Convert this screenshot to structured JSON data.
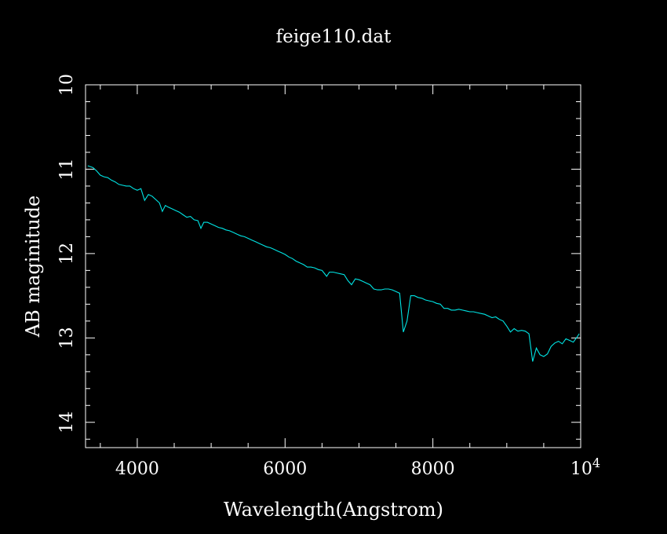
{
  "chart_data": {
    "type": "line",
    "title": "feige110.dat",
    "xlabel": "Wavelength(Angstrom)",
    "ylabel": "AB maginitude",
    "xlim": [
      3300,
      10000
    ],
    "ylim": [
      10,
      14.3
    ],
    "y_inverted": true,
    "grid": false,
    "x_ticks": [
      {
        "value": 4000,
        "label": "4000"
      },
      {
        "value": 6000,
        "label": "6000"
      },
      {
        "value": 8000,
        "label": "8000"
      },
      {
        "value": 10000,
        "label": "10",
        "sup": "4"
      }
    ],
    "y_ticks": [
      {
        "value": 10,
        "label": "10"
      },
      {
        "value": 11,
        "label": "11"
      },
      {
        "value": 12,
        "label": "12"
      },
      {
        "value": 13,
        "label": "13"
      },
      {
        "value": 14,
        "label": "14"
      }
    ],
    "colors": {
      "background": "#000000",
      "axes": "#ffffff",
      "series": "#00e5e5"
    },
    "series": [
      {
        "x": [
          3330,
          3400,
          3450,
          3500,
          3550,
          3600,
          3650,
          3700,
          3750,
          3800,
          3850,
          3900,
          3950,
          4000,
          4050,
          4100,
          4150,
          4200,
          4250,
          4300,
          4340,
          4380,
          4420,
          4470,
          4520,
          4570,
          4620,
          4670,
          4720,
          4770,
          4820,
          4861,
          4900,
          4950,
          5000,
          5050,
          5100,
          5150,
          5200,
          5250,
          5300,
          5350,
          5400,
          5450,
          5500,
          5550,
          5600,
          5650,
          5700,
          5750,
          5800,
          5850,
          5900,
          5950,
          6000,
          6050,
          6100,
          6150,
          6200,
          6250,
          6300,
          6350,
          6400,
          6450,
          6500,
          6563,
          6600,
          6650,
          6700,
          6750,
          6800,
          6850,
          6900,
          6950,
          7000,
          7050,
          7100,
          7150,
          7200,
          7250,
          7300,
          7350,
          7400,
          7450,
          7500,
          7550,
          7600,
          7650,
          7700,
          7750,
          7800,
          7850,
          7900,
          7950,
          8000,
          8050,
          8100,
          8150,
          8200,
          8250,
          8300,
          8350,
          8400,
          8450,
          8500,
          8550,
          8600,
          8650,
          8700,
          8750,
          8800,
          8850,
          8900,
          8950,
          9000,
          9050,
          9100,
          9150,
          9200,
          9250,
          9300,
          9350,
          9400,
          9450,
          9500,
          9550,
          9600,
          9650,
          9700,
          9750,
          9800,
          9850,
          9900,
          9950,
          9980
        ],
        "y": [
          10.96,
          10.98,
          11.02,
          11.07,
          11.09,
          11.1,
          11.13,
          11.15,
          11.18,
          11.19,
          11.2,
          11.2,
          11.23,
          11.25,
          11.23,
          11.37,
          11.3,
          11.32,
          11.36,
          11.4,
          11.5,
          11.43,
          11.45,
          11.47,
          11.49,
          11.51,
          11.54,
          11.57,
          11.56,
          11.6,
          11.61,
          11.7,
          11.63,
          11.63,
          11.65,
          11.67,
          11.69,
          11.7,
          11.72,
          11.73,
          11.75,
          11.77,
          11.79,
          11.8,
          11.82,
          11.84,
          11.86,
          11.88,
          11.9,
          11.92,
          11.93,
          11.95,
          11.97,
          11.99,
          12.01,
          12.04,
          12.06,
          12.09,
          12.11,
          12.13,
          12.16,
          12.16,
          12.17,
          12.19,
          12.2,
          12.27,
          12.22,
          12.22,
          12.23,
          12.24,
          12.25,
          12.32,
          12.37,
          12.3,
          12.31,
          12.33,
          12.35,
          12.37,
          12.42,
          12.43,
          12.43,
          12.42,
          12.42,
          12.43,
          12.45,
          12.47,
          12.93,
          12.8,
          12.5,
          12.5,
          12.52,
          12.53,
          12.55,
          12.56,
          12.57,
          12.59,
          12.6,
          12.65,
          12.65,
          12.67,
          12.67,
          12.66,
          12.67,
          12.68,
          12.69,
          12.69,
          12.7,
          12.71,
          12.72,
          12.74,
          12.76,
          12.75,
          12.78,
          12.8,
          12.86,
          12.93,
          12.89,
          12.92,
          12.91,
          12.92,
          12.95,
          13.28,
          13.12,
          13.2,
          13.22,
          13.19,
          13.1,
          13.06,
          13.04,
          13.07,
          13.01,
          13.03,
          13.05,
          12.99,
          12.95
        ]
      }
    ]
  }
}
